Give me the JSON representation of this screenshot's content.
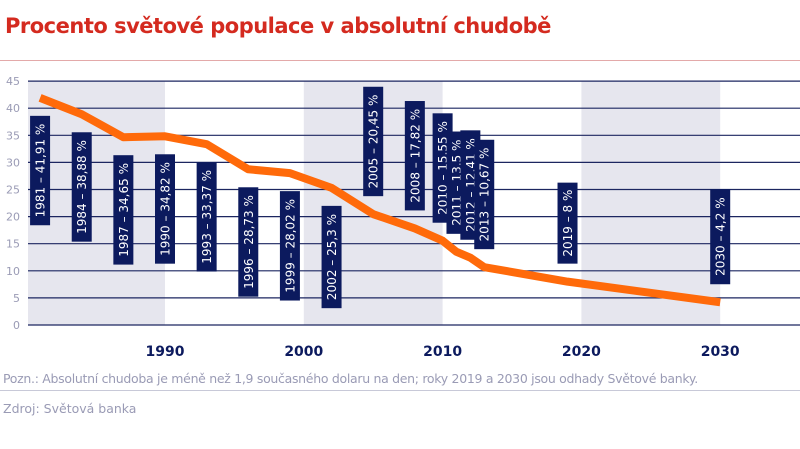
{
  "title": "Procento světové populace v absolutní chudobě",
  "note": "Pozn.: Absolutní chudoba je méně než 1,9 současného dolaru na den; roky 2019 a 2030 jsou odhady Světové banky.",
  "source": "Zdroj: Světová banka",
  "colors": {
    "title": "#d42a1f",
    "line": "#ff6a0a",
    "label_box": "#0c1a5e",
    "grid": "#1c2660",
    "band": "#e6e6ee"
  },
  "chart_data": {
    "type": "line",
    "title": "Procento světové populace v absolutní chudobě",
    "xlabel": "",
    "ylabel": "",
    "xlim": [
      1980,
      2035
    ],
    "ylim": [
      0,
      45
    ],
    "x_ticks": [
      "1990",
      "2000",
      "2010",
      "2020",
      "2030"
    ],
    "y_ticks": [
      "0",
      "5",
      "10",
      "15",
      "20",
      "25",
      "30",
      "35",
      "40",
      "45"
    ],
    "grid": true,
    "x": [
      1981,
      1984,
      1987,
      1990,
      1993,
      1996,
      1999,
      2002,
      2005,
      2008,
      2010,
      2011,
      2012,
      2013,
      2019,
      2030
    ],
    "values": [
      41.91,
      38.88,
      34.65,
      34.82,
      33.37,
      28.73,
      28.02,
      25.3,
      20.45,
      17.82,
      15.55,
      13.5,
      12.41,
      10.67,
      8,
      4.2
    ],
    "data_labels": [
      "1981 – 41,91 %",
      "1984 – 38,88 %",
      "1987 – 34,65 %",
      "1990 – 34,82 %",
      "1993 – 33,37 %",
      "1996 – 28,73 %",
      "1999 – 28,02 %",
      "2002 – 25,3 %",
      "2005 – 20,45 %",
      "2008 – 17,82 %",
      "2010 – 15,55 %",
      "2011 – 13,5 %",
      "2012 – 12,41 %",
      "2013 – 10,67 %",
      "2019 – 8 %",
      "2030 – 4,2 %"
    ]
  }
}
